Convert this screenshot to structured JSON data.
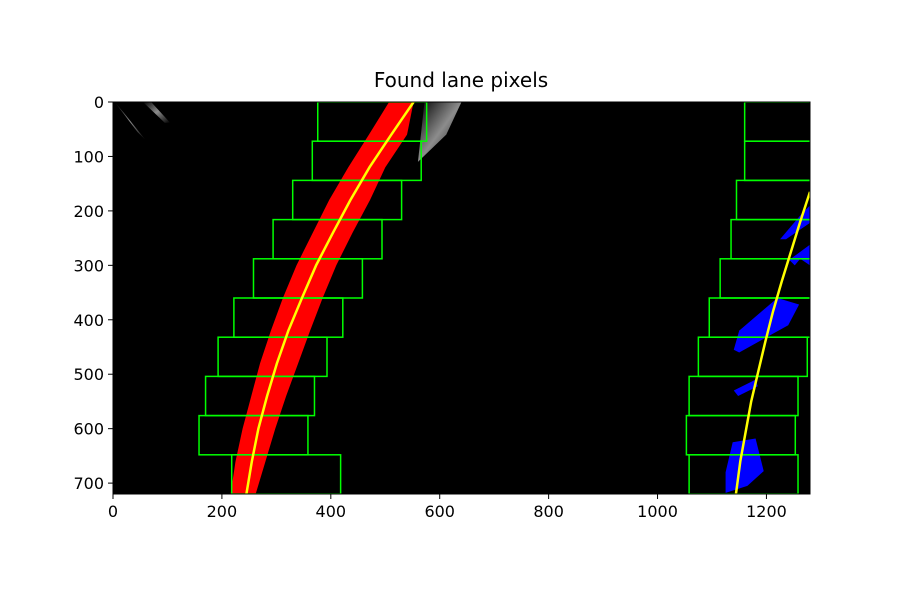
{
  "chart_data": {
    "type": "image",
    "title": "Found lane pixels",
    "xlabel": "",
    "ylabel": "",
    "xlim": [
      0,
      1280
    ],
    "ylim": [
      720,
      0
    ],
    "xticks": [
      0,
      200,
      400,
      600,
      800,
      1000,
      1200
    ],
    "yticks": [
      0,
      100,
      200,
      300,
      400,
      500,
      600,
      700
    ],
    "xtick_labels": [
      "0",
      "200",
      "400",
      "600",
      "800",
      "1000",
      "1200"
    ],
    "ytick_labels": [
      "0",
      "100",
      "200",
      "300",
      "400",
      "500",
      "600",
      "700"
    ],
    "grid": false,
    "colors": {
      "background": "#000000",
      "left_lane_pixels": "#ff0000",
      "right_lane_pixels": "#0000ff",
      "search_windows": "#00ff00",
      "fit_line": "#ffff00"
    },
    "left_windows": [
      {
        "x0": 218,
        "x1": 418,
        "y0": 648,
        "y1": 720
      },
      {
        "x0": 158,
        "x1": 358,
        "y0": 576,
        "y1": 648
      },
      {
        "x0": 170,
        "x1": 370,
        "y0": 504,
        "y1": 576
      },
      {
        "x0": 193,
        "x1": 393,
        "y0": 432,
        "y1": 504
      },
      {
        "x0": 222,
        "x1": 422,
        "y0": 360,
        "y1": 432
      },
      {
        "x0": 258,
        "x1": 458,
        "y0": 288,
        "y1": 360
      },
      {
        "x0": 294,
        "x1": 494,
        "y0": 216,
        "y1": 288
      },
      {
        "x0": 330,
        "x1": 530,
        "y0": 144,
        "y1": 216
      },
      {
        "x0": 366,
        "x1": 566,
        "y0": 72,
        "y1": 144
      },
      {
        "x0": 376,
        "x1": 576,
        "y0": 0,
        "y1": 72
      }
    ],
    "right_windows": [
      {
        "x0": 1058,
        "x1": 1258,
        "y0": 648,
        "y1": 720
      },
      {
        "x0": 1053,
        "x1": 1253,
        "y0": 576,
        "y1": 648
      },
      {
        "x0": 1058,
        "x1": 1258,
        "y0": 504,
        "y1": 576
      },
      {
        "x0": 1075,
        "x1": 1275,
        "y0": 432,
        "y1": 504
      },
      {
        "x0": 1095,
        "x1": 1295,
        "y0": 360,
        "y1": 432
      },
      {
        "x0": 1115,
        "x1": 1315,
        "y0": 288,
        "y1": 360
      },
      {
        "x0": 1135,
        "x1": 1335,
        "y0": 216,
        "y1": 288
      },
      {
        "x0": 1145,
        "x1": 1345,
        "y0": 144,
        "y1": 216
      },
      {
        "x0": 1160,
        "x1": 1360,
        "y0": 72,
        "y1": 144
      },
      {
        "x0": 1160,
        "x1": 1360,
        "y0": 0,
        "y1": 72
      }
    ],
    "left_fit": {
      "y": [
        0,
        60,
        120,
        180,
        240,
        300,
        360,
        420,
        480,
        540,
        600,
        660,
        720
      ],
      "x": [
        552,
        511,
        471,
        436,
        404,
        373,
        347,
        322,
        301,
        283,
        267,
        255,
        245
      ]
    },
    "right_fit": {
      "y": [
        165,
        220,
        275,
        330,
        385,
        440,
        495,
        550,
        605,
        660,
        720
      ],
      "x": [
        1280,
        1262,
        1245,
        1228,
        1212,
        1198,
        1185,
        1172,
        1162,
        1152,
        1144
      ]
    },
    "left_pixels_band": {
      "y": [
        0,
        60,
        120,
        180,
        240,
        300,
        360,
        420,
        480,
        540,
        600,
        660,
        720
      ],
      "x_left": [
        507,
        470,
        432,
        397,
        367,
        337,
        312,
        290,
        270,
        254,
        238,
        225,
        216
      ],
      "x_right": [
        552,
        540,
        500,
        472,
        440,
        410,
        385,
        362,
        340,
        318,
        298,
        280,
        262
      ]
    },
    "right_pixel_blobs": [
      {
        "pts": [
          [
            1225,
            252
          ],
          [
            1265,
            205
          ],
          [
            1280,
            190
          ],
          [
            1280,
            222
          ],
          [
            1236,
            252
          ]
        ]
      },
      {
        "pts": [
          [
            1242,
            290
          ],
          [
            1280,
            262
          ],
          [
            1280,
            300
          ],
          [
            1262,
            288
          ],
          [
            1252,
            300
          ]
        ]
      },
      {
        "pts": [
          [
            1150,
            460
          ],
          [
            1240,
            410
          ],
          [
            1260,
            372
          ],
          [
            1220,
            360
          ],
          [
            1150,
            420
          ],
          [
            1140,
            455
          ]
        ]
      },
      {
        "pts": [
          [
            1140,
            530
          ],
          [
            1180,
            510
          ],
          [
            1184,
            522
          ],
          [
            1148,
            540
          ]
        ]
      },
      {
        "pts": [
          [
            1125,
            718
          ],
          [
            1165,
            705
          ],
          [
            1195,
            678
          ],
          [
            1180,
            618
          ],
          [
            1138,
            625
          ],
          [
            1125,
            680
          ]
        ]
      }
    ]
  }
}
